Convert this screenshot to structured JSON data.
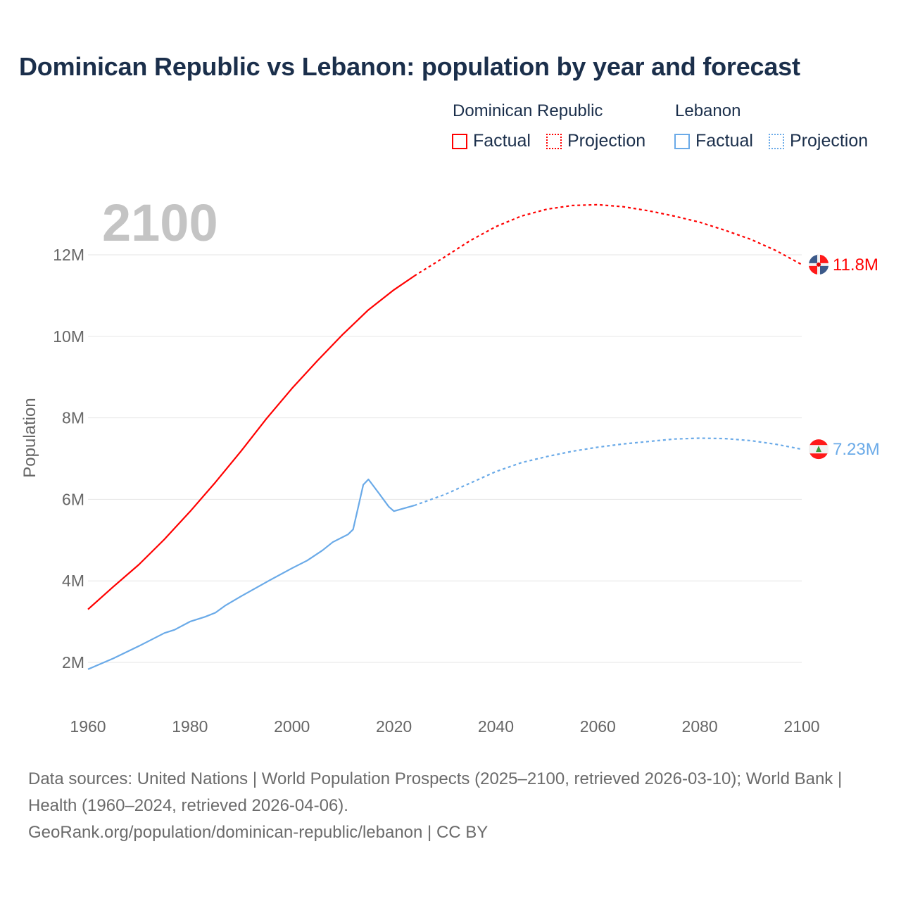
{
  "chart_data": {
    "type": "line",
    "title": "Dominican Republic vs Lebanon: population by year and forecast",
    "xlabel": "",
    "ylabel": "Population",
    "xlim": [
      1960,
      2100
    ],
    "ylim": [
      1,
      13.8
    ],
    "x_ticks": [
      "1960",
      "1980",
      "2000",
      "2020",
      "2040",
      "2060",
      "2080",
      "2100"
    ],
    "y_ticks": [
      {
        "v": 2,
        "label": "2M"
      },
      {
        "v": 4,
        "label": "4M"
      },
      {
        "v": 6,
        "label": "6M"
      },
      {
        "v": 8,
        "label": "8M"
      },
      {
        "v": 10,
        "label": "10M"
      },
      {
        "v": 12,
        "label": "12M"
      }
    ],
    "grid": true,
    "year_watermark": "2100",
    "legend": {
      "placement": "top-right",
      "groups": [
        {
          "name": "Dominican Republic",
          "factual": "Factual",
          "projection": "Projection"
        },
        {
          "name": "Lebanon",
          "factual": "Factual",
          "projection": "Projection"
        }
      ]
    },
    "series": [
      {
        "name": "Dominican Republic",
        "color": "#ff0000",
        "end_label": "11.8M",
        "factual": [
          [
            1960,
            3.3
          ],
          [
            1965,
            3.86
          ],
          [
            1970,
            4.4
          ],
          [
            1975,
            5.02
          ],
          [
            1980,
            5.7
          ],
          [
            1985,
            6.42
          ],
          [
            1990,
            7.18
          ],
          [
            1995,
            7.98
          ],
          [
            2000,
            8.72
          ],
          [
            2005,
            9.4
          ],
          [
            2010,
            10.05
          ],
          [
            2015,
            10.65
          ],
          [
            2020,
            11.14
          ],
          [
            2024,
            11.48
          ]
        ],
        "projection": [
          [
            2024,
            11.48
          ],
          [
            2030,
            11.95
          ],
          [
            2035,
            12.35
          ],
          [
            2040,
            12.69
          ],
          [
            2045,
            12.95
          ],
          [
            2050,
            13.12
          ],
          [
            2055,
            13.21
          ],
          [
            2060,
            13.23
          ],
          [
            2065,
            13.18
          ],
          [
            2070,
            13.08
          ],
          [
            2075,
            12.95
          ],
          [
            2080,
            12.8
          ],
          [
            2085,
            12.6
          ],
          [
            2090,
            12.38
          ],
          [
            2095,
            12.1
          ],
          [
            2100,
            11.76
          ]
        ]
      },
      {
        "name": "Lebanon",
        "color": "#6aaae8",
        "end_label": "7.23M",
        "factual": [
          [
            1960,
            1.83
          ],
          [
            1965,
            2.1
          ],
          [
            1970,
            2.4
          ],
          [
            1975,
            2.72
          ],
          [
            1977,
            2.8
          ],
          [
            1980,
            3.0
          ],
          [
            1983,
            3.12
          ],
          [
            1985,
            3.22
          ],
          [
            1987,
            3.4
          ],
          [
            1990,
            3.62
          ],
          [
            1995,
            3.97
          ],
          [
            2000,
            4.31
          ],
          [
            2003,
            4.5
          ],
          [
            2006,
            4.75
          ],
          [
            2008,
            4.95
          ],
          [
            2011,
            5.14
          ],
          [
            2012,
            5.26
          ],
          [
            2013,
            5.81
          ],
          [
            2014,
            6.36
          ],
          [
            2015,
            6.49
          ],
          [
            2017,
            6.16
          ],
          [
            2019,
            5.82
          ],
          [
            2020,
            5.71
          ],
          [
            2024,
            5.85
          ]
        ],
        "projection": [
          [
            2024,
            5.85
          ],
          [
            2030,
            6.12
          ],
          [
            2035,
            6.4
          ],
          [
            2040,
            6.68
          ],
          [
            2045,
            6.9
          ],
          [
            2050,
            7.05
          ],
          [
            2055,
            7.18
          ],
          [
            2060,
            7.28
          ],
          [
            2065,
            7.36
          ],
          [
            2070,
            7.42
          ],
          [
            2075,
            7.48
          ],
          [
            2080,
            7.5
          ],
          [
            2085,
            7.49
          ],
          [
            2090,
            7.44
          ],
          [
            2095,
            7.35
          ],
          [
            2100,
            7.23
          ]
        ]
      }
    ]
  },
  "footer": {
    "sources": "Data sources: United Nations | World Population Prospects (2025–2100, retrieved 2026-03-10); World Bank | Health (1960–2024, retrieved 2026-04-06).",
    "link": "GeoRank.org/population/dominican-republic/lebanon | CC BY"
  }
}
